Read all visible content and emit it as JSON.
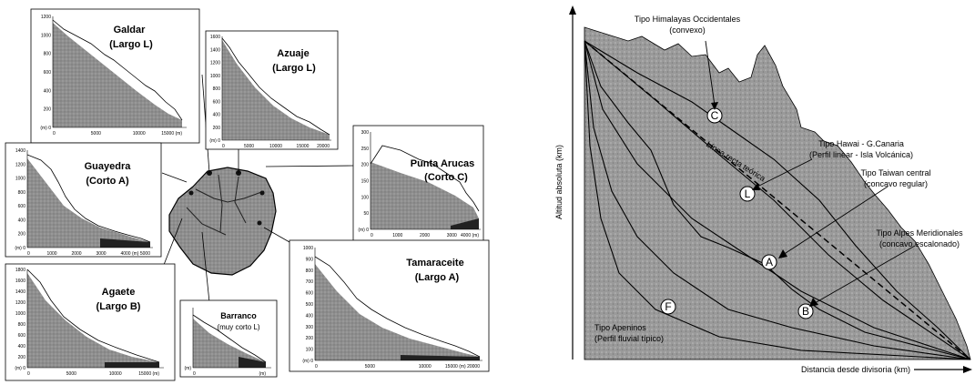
{
  "left": {
    "panels": [
      {
        "id": "galdar",
        "title1": "Galdar",
        "title2": "(Largo L)",
        "yticks": [
          "1200",
          "1000",
          "800",
          "600",
          "400",
          "200",
          "(m) 0"
        ],
        "xticks": [
          "0",
          "5000",
          "10000",
          "15000 (m)"
        ]
      },
      {
        "id": "azuaje",
        "title1": "Azuaje",
        "title2": "(Largo L)",
        "yticks": [
          "1600",
          "1400",
          "1200",
          "1000",
          "800",
          "600",
          "400",
          "200",
          "(m) 0"
        ],
        "xticks": [
          "0",
          "5000",
          "10000",
          "15000",
          "20000"
        ]
      },
      {
        "id": "punta",
        "title1": "Punta Arucas",
        "title2": "(Corto C)",
        "yticks": [
          "300",
          "250",
          "200",
          "150",
          "100",
          "50",
          "(m) 0"
        ],
        "xticks": [
          "0",
          "1000",
          "2000",
          "3000",
          "4000 (m)"
        ]
      },
      {
        "id": "guayedra",
        "title1": "Guayedra",
        "title2": "(Corto A)",
        "yticks": [
          "1400",
          "1200",
          "1000",
          "800",
          "600",
          "400",
          "200",
          "(m) 0"
        ],
        "xticks": [
          "0",
          "1000",
          "2000",
          "3000",
          "4000",
          "(m) 5000"
        ]
      },
      {
        "id": "tamaraceite",
        "title1": "Tamaraceite",
        "title2": "(Largo A)",
        "yticks": [
          "1000",
          "900",
          "800",
          "700",
          "600",
          "500",
          "400",
          "300",
          "200",
          "100",
          "(m) 0"
        ],
        "xticks": [
          "0",
          "5000",
          "10000",
          "15000 (m) 20000"
        ]
      },
      {
        "id": "agaete",
        "title1": "Agaete",
        "title2": "(Largo B)",
        "yticks": [
          "1800",
          "1600",
          "1400",
          "1200",
          "1000",
          "800",
          "600",
          "400",
          "200",
          "(m) 0"
        ],
        "xticks": [
          "0",
          "5000",
          "10000",
          "15000 (m)"
        ]
      },
      {
        "id": "barranco",
        "title1": "Barranco",
        "title2": "(muy corto L)",
        "yticks": [
          "",
          "",
          "",
          "",
          "",
          "",
          "",
          "(m)"
        ],
        "xticks": [
          "0",
          "",
          "",
          "(m)"
        ]
      }
    ]
  },
  "right": {
    "ylabel": "Altitud absoluta (km)",
    "xlabel": "Distancia desde divisoria (km)",
    "reference_line": "Línea recta teórica",
    "markers": [
      "C",
      "L",
      "A",
      "B",
      "F"
    ],
    "annotations": [
      {
        "line1": "Tipo Himalayas Occidentales",
        "line2": "(convexo)"
      },
      {
        "line1": "Tipo Hawai - G.Canaria",
        "line2": "(Perfil linear - Isla Volcánica)"
      },
      {
        "line1": "Tipo Taiwan central",
        "line2": "(concavo regular)"
      },
      {
        "line1": "Tipo Alpes Meridionales",
        "line2": "(concavo escalonado)"
      },
      {
        "line1": "Tipo Apeninos",
        "line2": "(Perfil fluvial típico)"
      }
    ]
  },
  "colors": {
    "fill": "#8c8c8c",
    "fill_light": "#b8b8b8",
    "dark": "#2a2a2a",
    "line": "#000000"
  }
}
